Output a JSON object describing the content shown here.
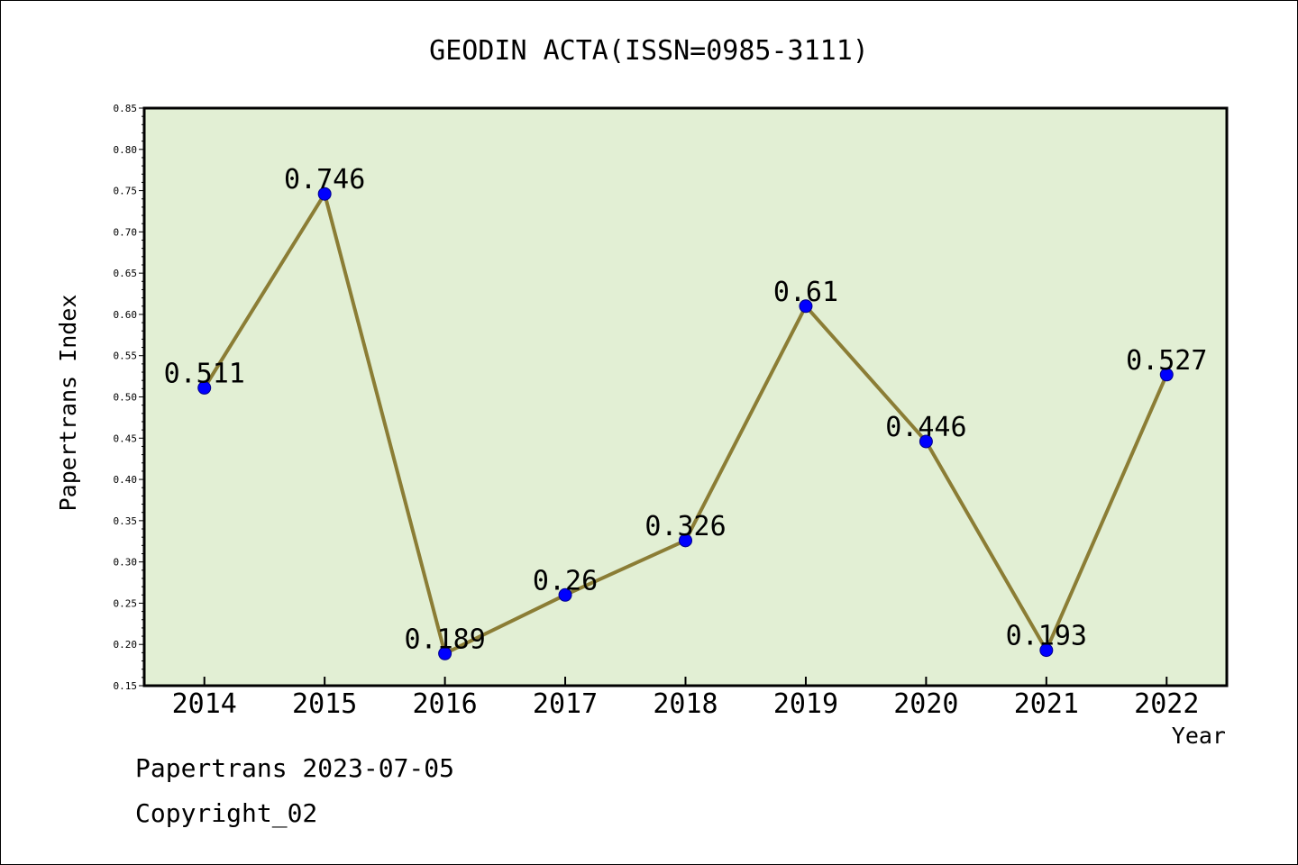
{
  "chart_data": {
    "type": "line",
    "title": "GEODIN ACTA(ISSN=0985-3111)",
    "xlabel": "Year",
    "ylabel": "Papertrans Index",
    "categories": [
      "2014",
      "2015",
      "2016",
      "2017",
      "2018",
      "2019",
      "2020",
      "2021",
      "2022"
    ],
    "series": [
      {
        "values": [
          0.511,
          0.746,
          0.189,
          0.26,
          0.326,
          0.61,
          0.446,
          0.193,
          0.527
        ],
        "labels": [
          "0.511",
          "0.746",
          "0.189",
          "0.26",
          "0.326",
          "0.61",
          "0.446",
          "0.193",
          "0.527"
        ]
      }
    ],
    "ylim": [
      0.15,
      0.85
    ],
    "yticks": [
      "0.15",
      "0.20",
      "0.25",
      "0.30",
      "0.35",
      "0.40",
      "0.45",
      "0.50",
      "0.55",
      "0.60",
      "0.65",
      "0.70",
      "0.75",
      "0.80",
      "0.85"
    ],
    "grid": false,
    "legend": "none",
    "colors": {
      "plot_background": "#e2efd4",
      "line": "#8b7d35",
      "marker": "#0000ff",
      "axis": "#000000"
    }
  },
  "footer": {
    "date_line": "Papertrans 2023-07-05",
    "copyright": "Copyright_02"
  }
}
